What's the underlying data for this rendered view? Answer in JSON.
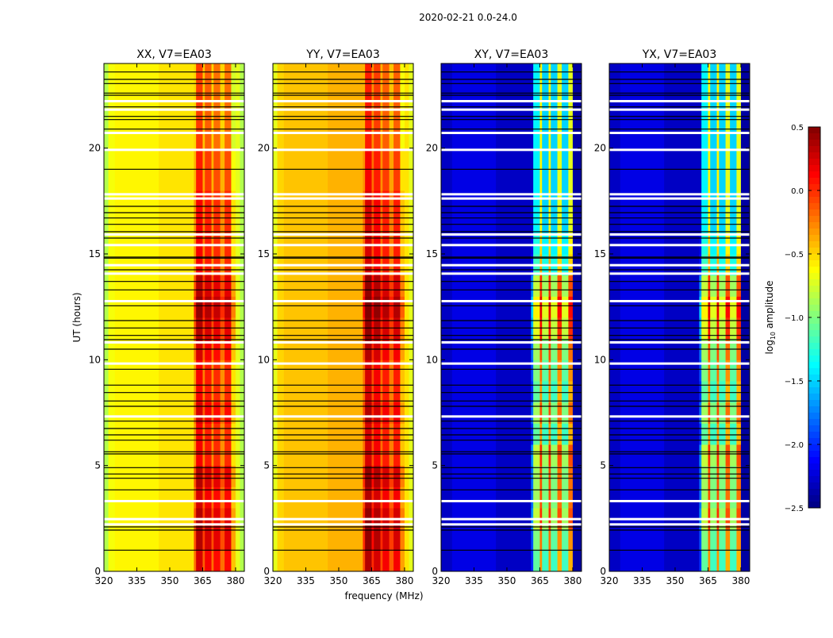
{
  "chart_data": {
    "type": "heatmap",
    "title": "2020-02-21 0.0-24.0",
    "xlabel": "frequency (MHz)",
    "ylabel": "UT (hours)",
    "xlim": [
      320,
      384
    ],
    "ylim": [
      0,
      24
    ],
    "xticks": [
      "320",
      "335",
      "350",
      "365",
      "380"
    ],
    "xtick_values": [
      320,
      335,
      350,
      365,
      380
    ],
    "yticks": [
      "0",
      "5",
      "10",
      "15",
      "20"
    ],
    "ytick_values": [
      0,
      5,
      10,
      15,
      20
    ],
    "colorbar": {
      "label": "log10 amplitude",
      "label_main": "log",
      "label_sub": "10",
      "label_rest": " amplitude",
      "range": [
        -2.5,
        0.5
      ],
      "ticks": [
        "0.5",
        "0.0",
        "−0.5",
        "−1.0",
        "−1.5",
        "−2.0",
        "−2.5"
      ],
      "tick_values": [
        0.5,
        0.0,
        -0.5,
        -1.0,
        -1.5,
        -2.0,
        -2.5
      ],
      "colormap": "jet"
    },
    "freq_bin_edges": [
      320,
      322,
      325,
      345,
      361,
      362,
      365,
      366,
      369,
      370,
      373,
      375,
      378,
      380,
      382,
      384
    ],
    "flagged_black_hours": [
      1.0,
      1.95,
      2.1,
      3.85,
      4.4,
      4.6,
      4.9,
      5.55,
      5.65,
      6.2,
      6.45,
      6.75,
      7.1,
      7.8,
      8.05,
      8.45,
      8.8,
      9.55,
      10.5,
      10.95,
      11.15,
      11.5,
      11.85,
      12.55,
      13.3,
      13.7,
      14.25,
      14.8,
      14.85,
      15.75,
      16.05,
      16.4,
      16.7,
      16.95,
      17.25,
      19.0,
      20.9,
      21.35,
      21.5,
      21.95,
      22.5,
      22.6,
      23.05,
      23.25,
      23.6
    ],
    "flagged_white_hours": [
      2.2,
      2.45,
      3.3,
      7.3,
      9.8,
      10.8,
      12.75,
      14.05,
      14.45,
      15.4,
      15.9,
      17.6,
      17.8,
      19.9,
      20.7,
      21.8,
      22.2
    ],
    "panels": [
      {
        "title": "XX, V7=EA03",
        "levels": [
          -0.85,
          -0.65,
          -0.6,
          -0.55,
          -0.3,
          0.15,
          -0.25,
          0.05,
          -0.3,
          0.0,
          -0.3,
          0.0,
          -0.55,
          -0.7,
          -0.85
        ],
        "band_hourly_offset": [
          0.1,
          0.2,
          0.2,
          0.1,
          0.2,
          0,
          0,
          0.1,
          0,
          0,
          0.1,
          0.2,
          0.3,
          0.2,
          0,
          0,
          0,
          0,
          -0.1,
          -0.1,
          -0.2,
          -0.2,
          -0.2,
          -0.2
        ]
      },
      {
        "title": "YY, V7=EA03",
        "levels": [
          -0.7,
          -0.5,
          -0.45,
          -0.4,
          -0.2,
          0.25,
          -0.1,
          0.15,
          -0.2,
          0.05,
          -0.25,
          0.05,
          -0.45,
          -0.55,
          -0.7
        ],
        "band_hourly_offset": [
          0.1,
          0.2,
          0.2,
          0.1,
          0.2,
          0,
          0,
          0.1,
          0,
          0,
          0.1,
          0.2,
          0.3,
          0.2,
          0,
          0,
          0,
          0,
          -0.1,
          -0.1,
          -0.2,
          -0.2,
          -0.2,
          -0.2
        ]
      },
      {
        "title": "XY, V7=EA03",
        "levels": [
          -2.3,
          -2.3,
          -2.2,
          -2.3,
          -2.3,
          -1.4,
          -0.6,
          -1.5,
          -0.6,
          -1.5,
          -0.7,
          -1.5,
          -0.7,
          -2.4,
          -2.4
        ],
        "band_hourly_offset": [
          0.3,
          0.4,
          0.6,
          0.5,
          0.5,
          0.6,
          0.3,
          0.5,
          0.3,
          0.4,
          0.5,
          0.7,
          0.8,
          0.6,
          0.2,
          0.1,
          0,
          0,
          0,
          0,
          0,
          0,
          0,
          0
        ]
      },
      {
        "title": "YX, V7=EA03",
        "levels": [
          -2.3,
          -2.3,
          -2.2,
          -2.3,
          -2.3,
          -1.4,
          -0.6,
          -1.5,
          -0.6,
          -1.5,
          -0.7,
          -1.5,
          -0.7,
          -2.4,
          -2.4
        ],
        "band_hourly_offset": [
          0.3,
          0.4,
          0.6,
          0.5,
          0.5,
          0.6,
          0.3,
          0.5,
          0.3,
          0.4,
          0.5,
          0.7,
          0.8,
          0.6,
          0.2,
          0.1,
          0,
          0,
          0,
          0,
          0,
          0,
          0,
          0
        ]
      }
    ]
  }
}
